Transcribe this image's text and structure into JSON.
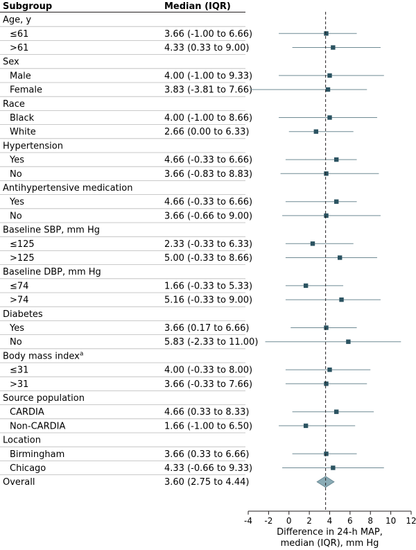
{
  "chart_data": {
    "type": "forest",
    "columns": {
      "subgroup": "Subgroup",
      "median": "Median (IQR)"
    },
    "xlabel": [
      "Difference in 24-h MAP,",
      "median (IQR), mm Hg"
    ],
    "xlim": [
      -4,
      12
    ],
    "xticks": [
      -4,
      -2,
      0,
      2,
      4,
      6,
      8,
      10,
      12
    ],
    "reference_line": 3.6,
    "marker_color": "#2b5361",
    "summary_color": "#8aabb5",
    "rows": [
      {
        "kind": "group",
        "label": "Age, y"
      },
      {
        "kind": "item",
        "label": "≤61",
        "text": "3.66 (-1.00 to 6.66)",
        "est": 3.66,
        "lo": -1.0,
        "hi": 6.66
      },
      {
        "kind": "item",
        "label": ">61",
        "text": "4.33 (0.33 to 9.00)",
        "est": 4.33,
        "lo": 0.33,
        "hi": 9.0
      },
      {
        "kind": "group",
        "label": "Sex"
      },
      {
        "kind": "item",
        "label": "Male",
        "text": "4.00 (-1.00 to 9.33)",
        "est": 4.0,
        "lo": -1.0,
        "hi": 9.33
      },
      {
        "kind": "item",
        "label": "Female",
        "text": "3.83 (-3.81 to 7.66)",
        "est": 3.83,
        "lo": -3.81,
        "hi": 7.66
      },
      {
        "kind": "group",
        "label": "Race"
      },
      {
        "kind": "item",
        "label": "Black",
        "text": "4.00 (-1.00 to 8.66)",
        "est": 4.0,
        "lo": -1.0,
        "hi": 8.66
      },
      {
        "kind": "item",
        "label": "White",
        "text": "2.66 (0.00 to 6.33)",
        "est": 2.66,
        "lo": 0.0,
        "hi": 6.33
      },
      {
        "kind": "group",
        "label": "Hypertension"
      },
      {
        "kind": "item",
        "label": "Yes",
        "text": "4.66 (-0.33 to 6.66)",
        "est": 4.66,
        "lo": -0.33,
        "hi": 6.66
      },
      {
        "kind": "item",
        "label": "No",
        "text": "3.66 (-0.83 to 8.83)",
        "est": 3.66,
        "lo": -0.83,
        "hi": 8.83
      },
      {
        "kind": "group",
        "label": "Antihypertensive medication"
      },
      {
        "kind": "item",
        "label": "Yes",
        "text": "4.66 (-0.33 to 6.66)",
        "est": 4.66,
        "lo": -0.33,
        "hi": 6.66
      },
      {
        "kind": "item",
        "label": "No",
        "text": "3.66 (-0.66 to 9.00)",
        "est": 3.66,
        "lo": -0.66,
        "hi": 9.0
      },
      {
        "kind": "group",
        "label": "Baseline SBP, mm Hg"
      },
      {
        "kind": "item",
        "label": "≤125",
        "text": "2.33 (-0.33 to 6.33)",
        "est": 2.33,
        "lo": -0.33,
        "hi": 6.33
      },
      {
        "kind": "item",
        "label": ">125",
        "text": "5.00 (-0.33 to 8.66)",
        "est": 5.0,
        "lo": -0.33,
        "hi": 8.66
      },
      {
        "kind": "group",
        "label": "Baseline DBP, mm Hg"
      },
      {
        "kind": "item",
        "label": "≤74",
        "text": "1.66 (-0.33 to 5.33)",
        "est": 1.66,
        "lo": -0.33,
        "hi": 5.33
      },
      {
        "kind": "item",
        "label": ">74",
        "text": "5.16 (-0.33 to 9.00)",
        "est": 5.16,
        "lo": -0.33,
        "hi": 9.0
      },
      {
        "kind": "group",
        "label": "Diabetes"
      },
      {
        "kind": "item",
        "label": "Yes",
        "text": "3.66 (0.17 to 6.66)",
        "est": 3.66,
        "lo": 0.17,
        "hi": 6.66
      },
      {
        "kind": "item",
        "label": "No",
        "text": "5.83 (-2.33 to 11.00)",
        "est": 5.83,
        "lo": -2.33,
        "hi": 11.0
      },
      {
        "kind": "group",
        "label": "Body mass index",
        "sup": "a"
      },
      {
        "kind": "item",
        "label": "≤31",
        "text": "4.00 (-0.33 to 8.00)",
        "est": 4.0,
        "lo": -0.33,
        "hi": 8.0
      },
      {
        "kind": "item",
        "label": ">31",
        "text": "3.66 (-0.33 to 7.66)",
        "est": 3.66,
        "lo": -0.33,
        "hi": 7.66
      },
      {
        "kind": "group",
        "label": "Source population"
      },
      {
        "kind": "item",
        "label": "CARDIA",
        "text": "4.66 (0.33 to 8.33)",
        "est": 4.66,
        "lo": 0.33,
        "hi": 8.33
      },
      {
        "kind": "item",
        "label": "Non-CARDIA",
        "text": "1.66 (-1.00 to 6.50)",
        "est": 1.66,
        "lo": -1.0,
        "hi": 6.5
      },
      {
        "kind": "group",
        "label": "Location"
      },
      {
        "kind": "item",
        "label": "Birmingham",
        "text": "3.66 (0.33 to 6.66)",
        "est": 3.66,
        "lo": 0.33,
        "hi": 6.66
      },
      {
        "kind": "item",
        "label": "Chicago",
        "text": "4.33 (-0.66 to 9.33)",
        "est": 4.33,
        "lo": -0.66,
        "hi": 9.33
      },
      {
        "kind": "overall",
        "label": "Overall",
        "text": "3.60 (2.75 to 4.44)",
        "est": 3.6,
        "lo": 2.75,
        "hi": 4.44
      }
    ]
  }
}
